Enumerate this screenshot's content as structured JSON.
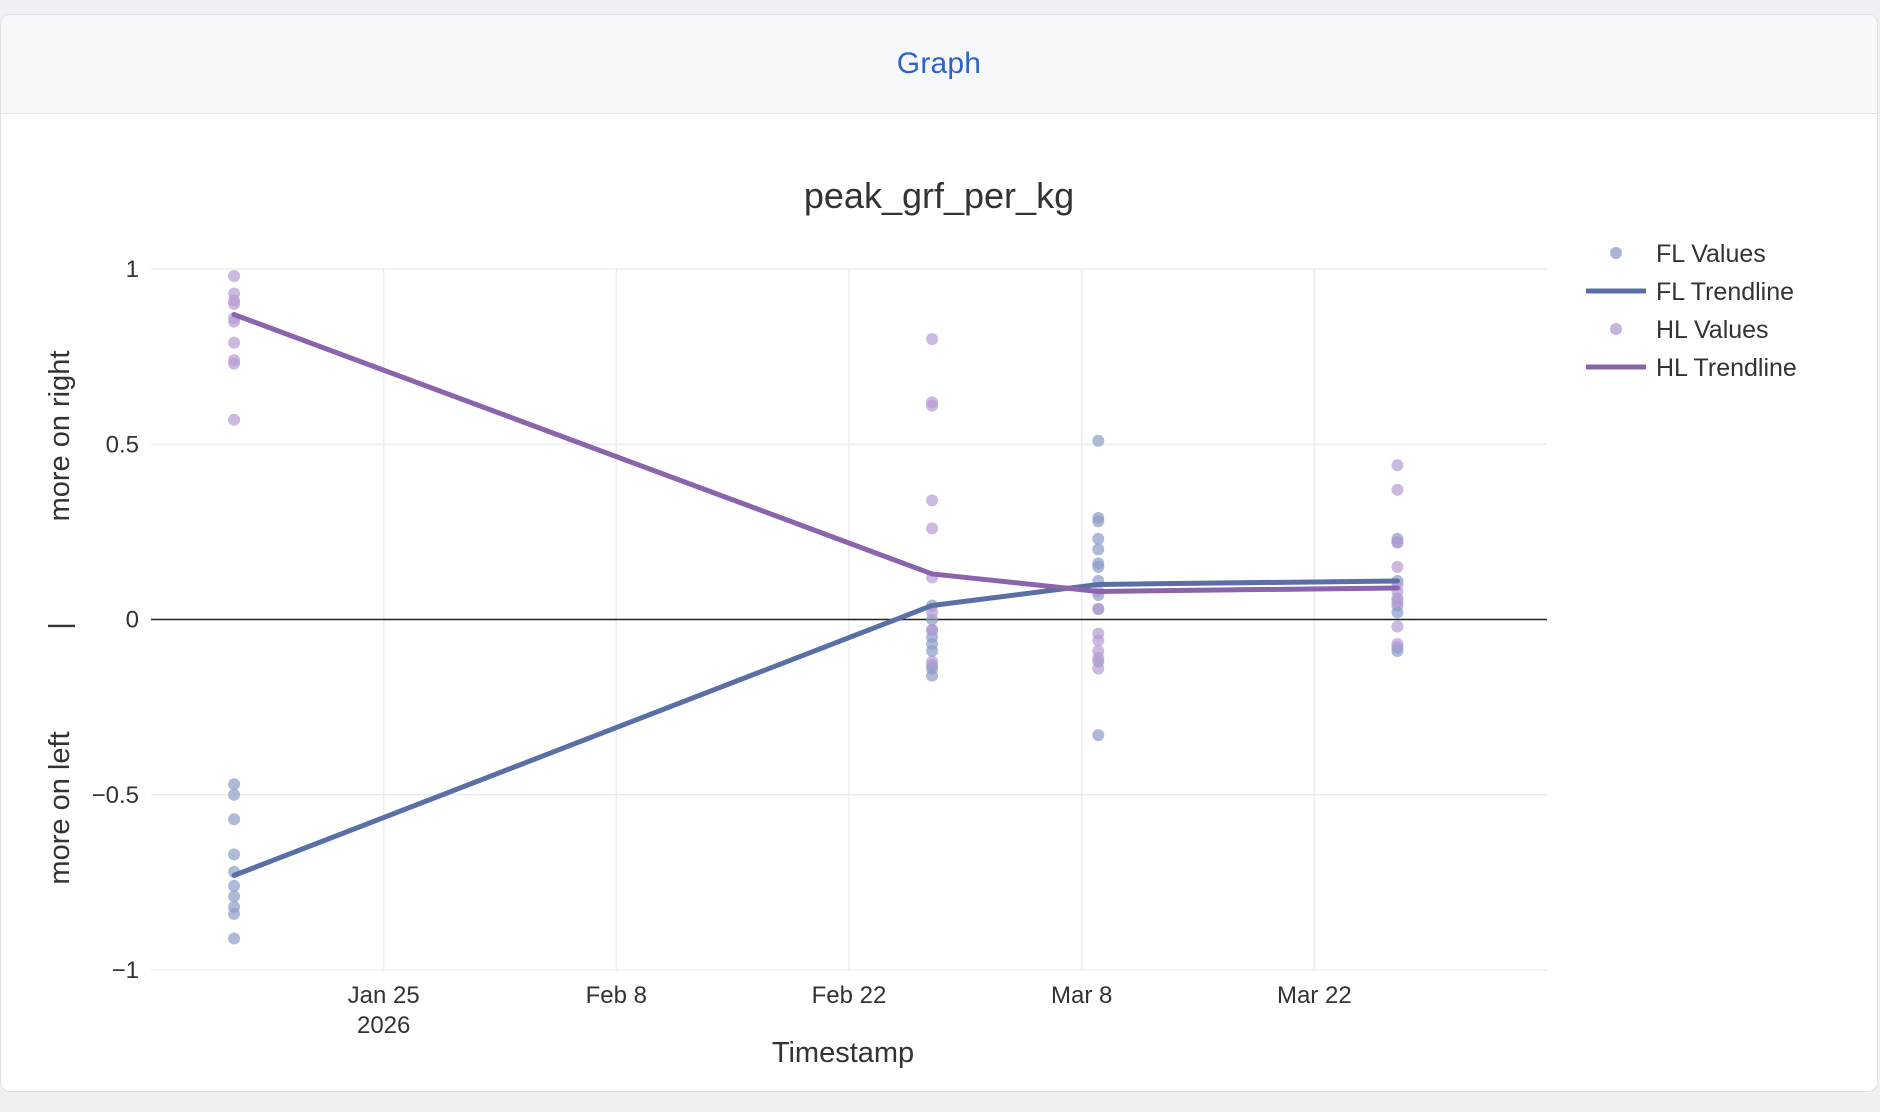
{
  "header": {
    "tab_label": "Graph"
  },
  "chart_data": {
    "type": "scatter",
    "title": "peak_grf_per_kg",
    "xlabel": "Timestamp",
    "ylabel_top": "more on right",
    "ylabel_mid": "|",
    "ylabel_bottom": "more on left",
    "ylim": [
      -1,
      1
    ],
    "xlim": [
      "2026-01-11",
      "2026-04-05"
    ],
    "y_ticks": [
      {
        "value": 1,
        "label": "1"
      },
      {
        "value": 0.5,
        "label": "0.5"
      },
      {
        "value": 0,
        "label": "0"
      },
      {
        "value": -0.5,
        "label": "−0.5"
      },
      {
        "value": -1,
        "label": "−1"
      }
    ],
    "x_ticks": [
      {
        "date": "2026-01-25",
        "label": "Jan 25",
        "sublabel": "2026"
      },
      {
        "date": "2026-02-08",
        "label": "Feb 8",
        "sublabel": ""
      },
      {
        "date": "2026-02-22",
        "label": "Feb 22",
        "sublabel": ""
      },
      {
        "date": "2026-03-08",
        "label": "Mar 8",
        "sublabel": ""
      },
      {
        "date": "2026-03-22",
        "label": "Mar 22",
        "sublabel": ""
      }
    ],
    "grid": true,
    "legend_position": "top-right",
    "colors": {
      "fl_points": "#8b9cc6",
      "fl_line": "#5a6fa6",
      "hl_points": "#b79bd1",
      "hl_line": "#8c63ad"
    },
    "series": [
      {
        "name": "FL Values",
        "kind": "markers",
        "color_key": "fl_points",
        "points": [
          [
            "2026-01-16",
            -0.47
          ],
          [
            "2026-01-16",
            -0.5
          ],
          [
            "2026-01-16",
            -0.57
          ],
          [
            "2026-01-16",
            -0.67
          ],
          [
            "2026-01-16",
            -0.72
          ],
          [
            "2026-01-16",
            -0.76
          ],
          [
            "2026-01-16",
            -0.79
          ],
          [
            "2026-01-16",
            -0.82
          ],
          [
            "2026-01-16",
            -0.84
          ],
          [
            "2026-01-16",
            -0.91
          ],
          [
            "2026-02-27",
            0.04
          ],
          [
            "2026-02-27",
            0.0
          ],
          [
            "2026-02-27",
            -0.03
          ],
          [
            "2026-02-27",
            -0.05
          ],
          [
            "2026-02-27",
            -0.07
          ],
          [
            "2026-02-27",
            -0.09
          ],
          [
            "2026-02-27",
            -0.13
          ],
          [
            "2026-02-27",
            -0.14
          ],
          [
            "2026-02-27",
            -0.16
          ],
          [
            "2026-03-09",
            0.51
          ],
          [
            "2026-03-09",
            0.29
          ],
          [
            "2026-03-09",
            0.28
          ],
          [
            "2026-03-09",
            0.23
          ],
          [
            "2026-03-09",
            0.2
          ],
          [
            "2026-03-09",
            0.16
          ],
          [
            "2026-03-09",
            0.15
          ],
          [
            "2026-03-09",
            0.11
          ],
          [
            "2026-03-09",
            0.07
          ],
          [
            "2026-03-09",
            0.03
          ],
          [
            "2026-03-09",
            -0.12
          ],
          [
            "2026-03-09",
            -0.33
          ],
          [
            "2026-03-27",
            0.23
          ],
          [
            "2026-03-27",
            0.22
          ],
          [
            "2026-03-27",
            0.11
          ],
          [
            "2026-03-27",
            0.06
          ],
          [
            "2026-03-27",
            0.04
          ],
          [
            "2026-03-27",
            0.02
          ],
          [
            "2026-03-27",
            -0.08
          ],
          [
            "2026-03-27",
            -0.09
          ]
        ]
      },
      {
        "name": "FL Trendline",
        "kind": "line",
        "color_key": "fl_line",
        "points": [
          [
            "2026-01-16",
            -0.73
          ],
          [
            "2026-02-27",
            0.04
          ],
          [
            "2026-03-09",
            0.1
          ],
          [
            "2026-03-27",
            0.11
          ]
        ]
      },
      {
        "name": "HL Values",
        "kind": "markers",
        "color_key": "hl_points",
        "points": [
          [
            "2026-01-16",
            0.98
          ],
          [
            "2026-01-16",
            0.93
          ],
          [
            "2026-01-16",
            0.91
          ],
          [
            "2026-01-16",
            0.9
          ],
          [
            "2026-01-16",
            0.86
          ],
          [
            "2026-01-16",
            0.85
          ],
          [
            "2026-01-16",
            0.79
          ],
          [
            "2026-01-16",
            0.74
          ],
          [
            "2026-01-16",
            0.73
          ],
          [
            "2026-01-16",
            0.57
          ],
          [
            "2026-02-27",
            0.8
          ],
          [
            "2026-02-27",
            0.62
          ],
          [
            "2026-02-27",
            0.61
          ],
          [
            "2026-02-27",
            0.34
          ],
          [
            "2026-02-27",
            0.26
          ],
          [
            "2026-02-27",
            0.12
          ],
          [
            "2026-02-27",
            0.02
          ],
          [
            "2026-02-27",
            -0.03
          ],
          [
            "2026-02-27",
            -0.12
          ],
          [
            "2026-03-09",
            0.08
          ],
          [
            "2026-03-09",
            0.03
          ],
          [
            "2026-03-09",
            -0.04
          ],
          [
            "2026-03-09",
            -0.06
          ],
          [
            "2026-03-09",
            -0.09
          ],
          [
            "2026-03-09",
            -0.11
          ],
          [
            "2026-03-09",
            -0.14
          ],
          [
            "2026-03-27",
            0.44
          ],
          [
            "2026-03-27",
            0.37
          ],
          [
            "2026-03-27",
            0.22
          ],
          [
            "2026-03-27",
            0.15
          ],
          [
            "2026-03-27",
            0.1
          ],
          [
            "2026-03-27",
            0.08
          ],
          [
            "2026-03-27",
            0.05
          ],
          [
            "2026-03-27",
            -0.02
          ],
          [
            "2026-03-27",
            -0.07
          ]
        ]
      },
      {
        "name": "HL Trendline",
        "kind": "line",
        "color_key": "hl_line",
        "points": [
          [
            "2026-01-16",
            0.87
          ],
          [
            "2026-02-27",
            0.13
          ],
          [
            "2026-03-09",
            0.08
          ],
          [
            "2026-03-27",
            0.09
          ]
        ]
      }
    ]
  }
}
